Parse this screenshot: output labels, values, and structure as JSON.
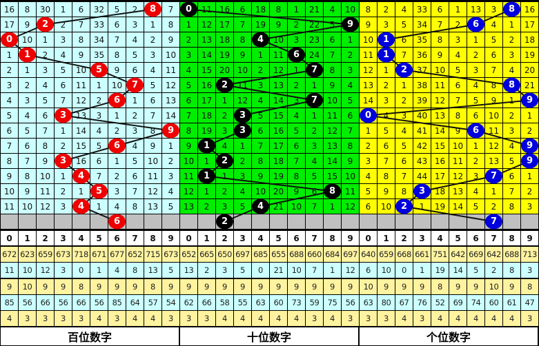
{
  "header_digits": [
    "0",
    "1",
    "2",
    "3",
    "4",
    "5",
    "6",
    "7",
    "8",
    "9"
  ],
  "stat_row_colors": [
    "#fff3a0",
    "#ccffff",
    "#fff3a0",
    "#ccffff",
    "#fff3a0"
  ],
  "gray_color": "#c0c0c0",
  "panels": [
    {
      "label": "百位数字",
      "bg_color": "#ccffff",
      "ball_color": "#ee0000",
      "rows": [
        [
          16,
          8,
          30,
          1,
          6,
          32,
          5,
          2,
          8,
          7
        ],
        [
          17,
          9,
          2,
          2,
          7,
          33,
          6,
          3,
          1,
          8
        ],
        [
          0,
          10,
          1,
          3,
          8,
          34,
          7,
          4,
          2,
          9
        ],
        [
          1,
          1,
          2,
          4,
          9,
          35,
          8,
          5,
          3,
          10
        ],
        [
          2,
          1,
          3,
          5,
          10,
          5,
          9,
          6,
          4,
          11
        ],
        [
          3,
          2,
          4,
          6,
          11,
          1,
          10,
          7,
          5,
          12
        ],
        [
          4,
          3,
          5,
          7,
          12,
          2,
          6,
          1,
          6,
          13
        ],
        [
          5,
          4,
          6,
          3,
          13,
          3,
          1,
          2,
          7,
          14
        ],
        [
          6,
          5,
          7,
          1,
          14,
          4,
          2,
          3,
          8,
          9
        ],
        [
          7,
          6,
          8,
          2,
          15,
          5,
          6,
          4,
          9,
          1
        ],
        [
          8,
          7,
          9,
          3,
          16,
          6,
          1,
          5,
          10,
          2
        ],
        [
          9,
          8,
          10,
          1,
          4,
          7,
          2,
          6,
          11,
          3
        ],
        [
          10,
          9,
          11,
          2,
          1,
          5,
          3,
          7,
          12,
          4
        ],
        [
          11,
          10,
          12,
          3,
          4,
          1,
          4,
          8,
          13,
          5
        ]
      ],
      "balls": [
        8,
        2,
        0,
        1,
        5,
        7,
        6,
        3,
        9,
        6,
        3,
        4,
        5,
        4
      ],
      "next_ball": 6,
      "stats": [
        [
          "672",
          "623",
          "659",
          "673",
          "718",
          "671",
          "677",
          "652",
          "715",
          "673"
        ],
        [
          "11",
          "10",
          "12",
          "3",
          "0",
          "1",
          "4",
          "8",
          "13",
          "5"
        ],
        [
          "9",
          "10",
          "9",
          "9",
          "8",
          "9",
          "9",
          "9",
          "8",
          "9"
        ],
        [
          "85",
          "56",
          "66",
          "56",
          "66",
          "56",
          "85",
          "64",
          "57",
          "54"
        ],
        [
          "4",
          "3",
          "3",
          "3",
          "3",
          "4",
          "3",
          "4",
          "4",
          "3"
        ]
      ]
    },
    {
      "label": "十位数字",
      "bg_color": "#00ee00",
      "ball_color": "#000000",
      "rows": [
        [
          0,
          11,
          16,
          6,
          18,
          8,
          1,
          21,
          4,
          10
        ],
        [
          1,
          12,
          17,
          7,
          19,
          9,
          2,
          22,
          5,
          9
        ],
        [
          2,
          13,
          18,
          8,
          4,
          10,
          3,
          23,
          6,
          1
        ],
        [
          3,
          14,
          19,
          9,
          1,
          11,
          6,
          24,
          7,
          2
        ],
        [
          4,
          15,
          20,
          10,
          2,
          12,
          1,
          7,
          8,
          3
        ],
        [
          5,
          16,
          2,
          11,
          3,
          13,
          2,
          1,
          9,
          4
        ],
        [
          6,
          17,
          1,
          12,
          4,
          14,
          3,
          7,
          10,
          5
        ],
        [
          7,
          18,
          2,
          3,
          5,
          15,
          4,
          1,
          11,
          6
        ],
        [
          8,
          19,
          3,
          3,
          6,
          16,
          5,
          2,
          12,
          7
        ],
        [
          9,
          1,
          4,
          1,
          7,
          17,
          6,
          3,
          13,
          8
        ],
        [
          10,
          1,
          2,
          2,
          8,
          18,
          7,
          4,
          14,
          9
        ],
        [
          11,
          1,
          1,
          3,
          9,
          19,
          8,
          5,
          15,
          10
        ],
        [
          12,
          1,
          2,
          4,
          10,
          20,
          9,
          6,
          8,
          11
        ],
        [
          13,
          2,
          3,
          5,
          4,
          21,
          10,
          7,
          1,
          12
        ]
      ],
      "balls": [
        0,
        9,
        4,
        6,
        7,
        2,
        7,
        3,
        3,
        1,
        2,
        1,
        8,
        4
      ],
      "next_ball": 2,
      "stats": [
        [
          "652",
          "665",
          "650",
          "697",
          "685",
          "655",
          "688",
          "660",
          "684",
          "697"
        ],
        [
          "13",
          "2",
          "3",
          "5",
          "0",
          "21",
          "10",
          "7",
          "1",
          "12"
        ],
        [
          "9",
          "9",
          "9",
          "9",
          "9",
          "9",
          "9",
          "9",
          "9",
          "9"
        ],
        [
          "62",
          "66",
          "58",
          "55",
          "63",
          "60",
          "73",
          "59",
          "75",
          "56"
        ],
        [
          "3",
          "3",
          "4",
          "4",
          "4",
          "4",
          "4",
          "3",
          "4",
          "3"
        ]
      ]
    },
    {
      "label": "个位数字",
      "bg_color": "#ffff00",
      "ball_color": "#0000dd",
      "rows": [
        [
          8,
          2,
          4,
          33,
          6,
          1,
          13,
          3,
          8,
          16
        ],
        [
          9,
          3,
          5,
          34,
          7,
          2,
          6,
          4,
          1,
          17
        ],
        [
          10,
          1,
          6,
          35,
          8,
          3,
          1,
          5,
          2,
          18
        ],
        [
          11,
          1,
          7,
          36,
          9,
          4,
          2,
          6,
          3,
          19
        ],
        [
          12,
          1,
          2,
          37,
          10,
          5,
          3,
          7,
          4,
          20
        ],
        [
          13,
          2,
          1,
          38,
          11,
          6,
          4,
          8,
          8,
          21
        ],
        [
          14,
          3,
          2,
          39,
          12,
          7,
          5,
          9,
          1,
          9
        ],
        [
          0,
          4,
          3,
          40,
          13,
          8,
          6,
          10,
          2,
          1
        ],
        [
          1,
          5,
          4,
          41,
          14,
          9,
          6,
          11,
          3,
          2
        ],
        [
          2,
          6,
          5,
          42,
          15,
          10,
          1,
          12,
          4,
          9
        ],
        [
          3,
          7,
          6,
          43,
          16,
          11,
          2,
          13,
          5,
          9
        ],
        [
          4,
          8,
          7,
          44,
          17,
          12,
          3,
          7,
          6,
          1
        ],
        [
          5,
          9,
          8,
          3,
          18,
          13,
          4,
          1,
          7,
          2
        ],
        [
          6,
          10,
          2,
          1,
          19,
          14,
          5,
          2,
          8,
          3
        ]
      ],
      "balls": [
        8,
        6,
        1,
        1,
        2,
        8,
        9,
        0,
        6,
        9,
        9,
        7,
        3,
        2
      ],
      "next_ball": 7,
      "stats": [
        [
          "640",
          "659",
          "668",
          "661",
          "751",
          "642",
          "669",
          "642",
          "688",
          "713"
        ],
        [
          "6",
          "10",
          "0",
          "1",
          "19",
          "14",
          "5",
          "2",
          "8",
          "3"
        ],
        [
          "10",
          "9",
          "9",
          "9",
          "8",
          "9",
          "9",
          "10",
          "9",
          "8"
        ],
        [
          "63",
          "80",
          "67",
          "76",
          "52",
          "69",
          "74",
          "60",
          "61",
          "47"
        ],
        [
          "3",
          "3",
          "4",
          "3",
          "4",
          "4",
          "4",
          "4",
          "4",
          "3"
        ]
      ]
    }
  ]
}
